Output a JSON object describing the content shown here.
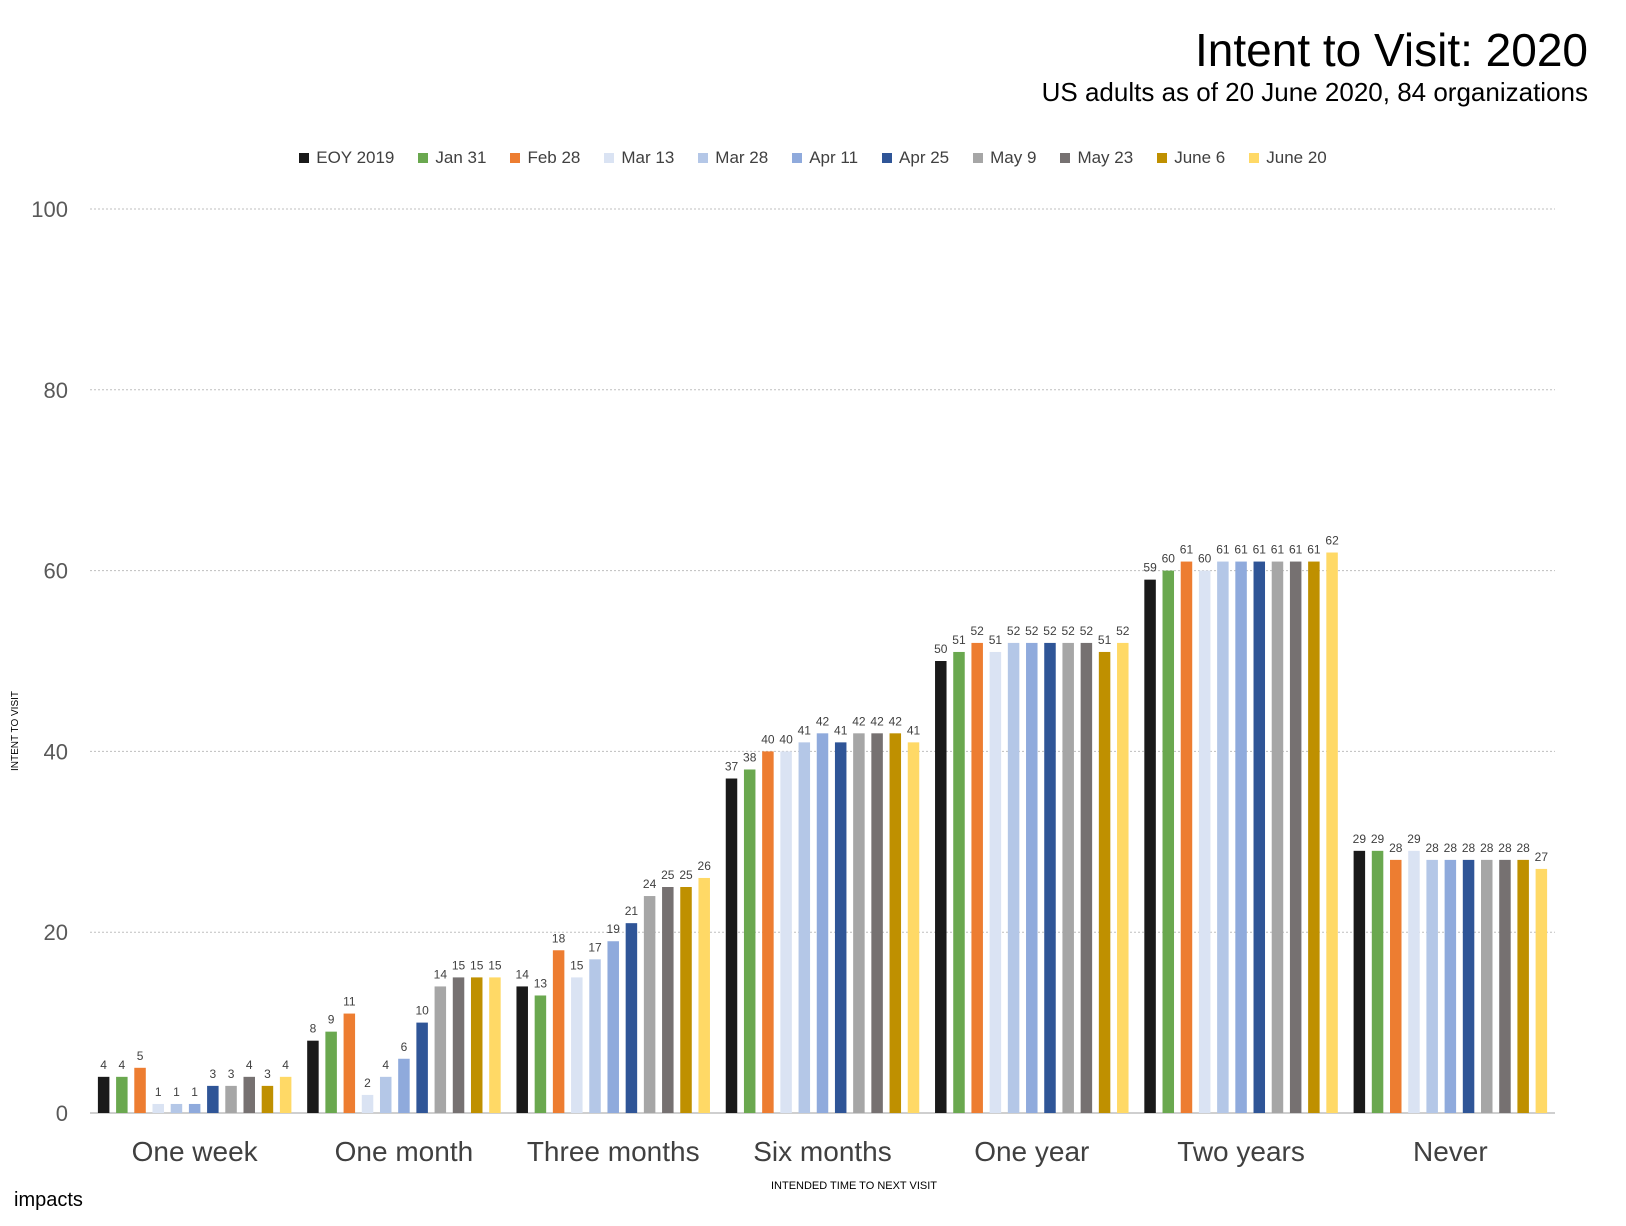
{
  "title": "Intent to Visit: 2020",
  "subtitle": "US adults as of 20 June 2020, 84 organizations",
  "logo_text": "impacts",
  "chart_data": {
    "type": "bar",
    "ylabel": "INTENT TO VISIT",
    "xlabel": "INTENDED TIME TO NEXT VISIT",
    "ylim": [
      0,
      100
    ],
    "yticks": [
      0,
      20,
      40,
      60,
      80,
      100
    ],
    "grid": true,
    "legend_position": "top-center",
    "categories": [
      "One week",
      "One month",
      "Three months",
      "Six months",
      "One year",
      "Two years",
      "Never"
    ],
    "series": [
      {
        "name": "EOY 2019",
        "color": "#1a1a1a",
        "values": [
          4,
          8,
          14,
          37,
          50,
          59,
          29
        ]
      },
      {
        "name": "Jan 31",
        "color": "#6aa84f",
        "values": [
          4,
          9,
          13,
          38,
          51,
          60,
          29
        ]
      },
      {
        "name": "Feb 28",
        "color": "#ed7d31",
        "values": [
          5,
          11,
          18,
          40,
          52,
          61,
          28
        ]
      },
      {
        "name": "Mar 13",
        "color": "#dae3f3",
        "values": [
          1,
          2,
          15,
          40,
          51,
          60,
          29
        ]
      },
      {
        "name": "Mar 28",
        "color": "#b4c7e7",
        "values": [
          1,
          4,
          17,
          41,
          52,
          61,
          28
        ]
      },
      {
        "name": "Apr 11",
        "color": "#8faadc",
        "values": [
          1,
          6,
          19,
          42,
          52,
          61,
          28
        ]
      },
      {
        "name": "Apr 25",
        "color": "#2f5597",
        "values": [
          3,
          10,
          21,
          41,
          52,
          61,
          28
        ]
      },
      {
        "name": "May 9",
        "color": "#a6a6a6",
        "values": [
          3,
          14,
          24,
          42,
          52,
          61,
          28
        ]
      },
      {
        "name": "May 23",
        "color": "#767171",
        "values": [
          4,
          15,
          25,
          42,
          52,
          61,
          28
        ]
      },
      {
        "name": "June 6",
        "color": "#bf9000",
        "values": [
          3,
          15,
          25,
          42,
          51,
          61,
          28
        ]
      },
      {
        "name": "June 20",
        "color": "#ffd966",
        "values": [
          4,
          15,
          26,
          41,
          52,
          62,
          27
        ]
      }
    ]
  }
}
